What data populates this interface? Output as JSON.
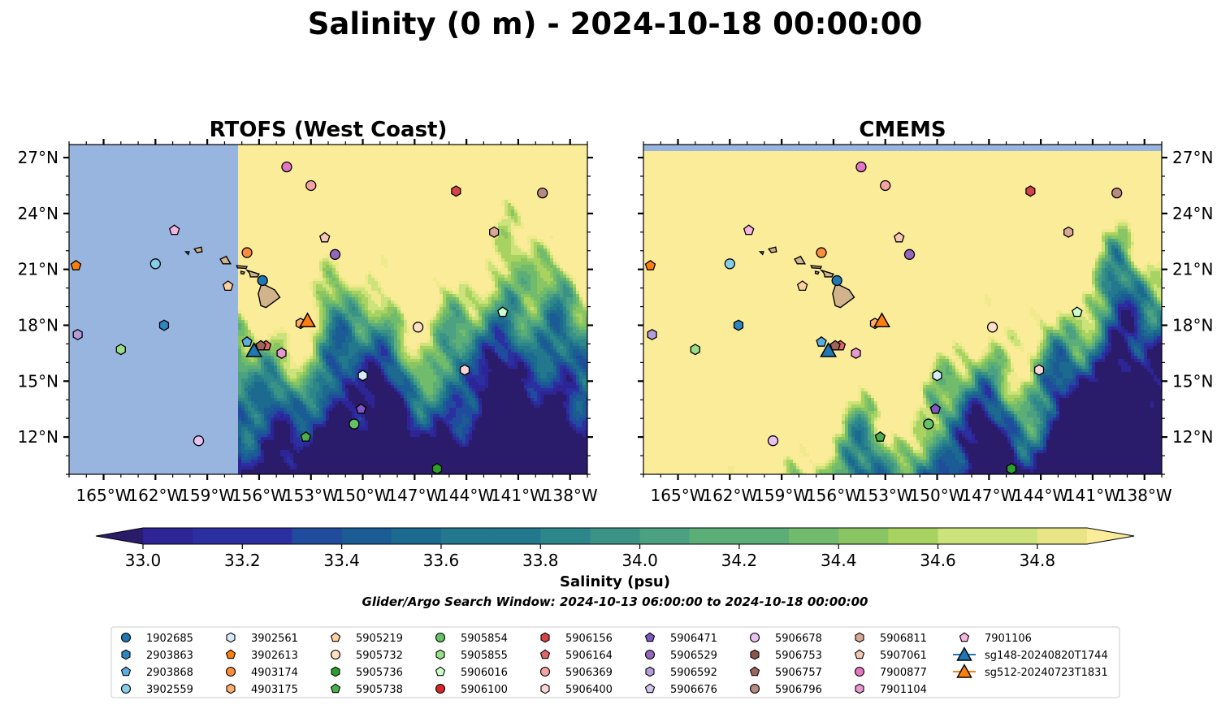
{
  "title": "Salinity (0 m) - 2024-10-18 00:00:00",
  "note": "Glider/Argo Search Window: 2024-10-13 06:00:00 to 2024-10-18 00:00:00",
  "colors": {
    "land": "#d2b48c",
    "nodata": "#98b5df",
    "salty": "#fbec99",
    "scale": [
      "#2a1c6b",
      "#2d2495",
      "#2b2fa0",
      "#1f4c9c",
      "#1b5c95",
      "#1d6a91",
      "#23788d",
      "#2c868a",
      "#3b9386",
      "#4ba181",
      "#5cae78",
      "#70bb6c",
      "#89c663",
      "#a8d360",
      "#cce27a",
      "#f0ea8d"
    ]
  },
  "chart_data": {
    "type": "map",
    "panels": [
      {
        "title": "RTOFS (West Coast)",
        "nodata_west_of_lon": -157.2,
        "mode": "rtofs"
      },
      {
        "title": "CMEMS",
        "nodata_north_of_lat": 27.3,
        "mode": "cmems"
      }
    ],
    "lon_range": [
      -167,
      -137
    ],
    "lat_range": [
      10,
      27.7
    ],
    "x_ticks": [
      -165,
      -162,
      -159,
      -156,
      -153,
      -150,
      -147,
      -144,
      -141,
      -138
    ],
    "x_tick_labels": [
      "165°W",
      "162°W",
      "159°W",
      "156°W",
      "153°W",
      "150°W",
      "147°W",
      "144°W",
      "141°W",
      "138°W"
    ],
    "y_ticks": [
      12,
      15,
      18,
      21,
      24,
      27
    ],
    "y_tick_labels": [
      "12°N",
      "15°N",
      "18°N",
      "21°N",
      "24°N",
      "27°N"
    ],
    "colorbar": {
      "label": "Salinity (psu)",
      "min": 32.9,
      "max": 34.9,
      "ticks": [
        33.0,
        33.2,
        33.4,
        33.6,
        33.8,
        34.0,
        34.2,
        34.4,
        34.6,
        34.8
      ],
      "tick_labels": [
        "33.0",
        "33.2",
        "33.4",
        "33.6",
        "33.8",
        "34.0",
        "34.2",
        "34.4",
        "34.6",
        "34.8"
      ],
      "extend": "both"
    },
    "platforms": [
      {
        "id": "1902685",
        "marker": "circle",
        "color": "#1f77b4",
        "lon": -155.8,
        "lat": 20.4
      },
      {
        "id": "2903863",
        "marker": "hexagon",
        "color": "#2e86c1",
        "lon": -161.5,
        "lat": 18.0
      },
      {
        "id": "2903868",
        "marker": "pentagon",
        "color": "#5dade2",
        "lon": -156.7,
        "lat": 17.1
      },
      {
        "id": "3902559",
        "marker": "circle",
        "color": "#87ceeb",
        "lon": -162.0,
        "lat": 21.3
      },
      {
        "id": "3902561",
        "marker": "hexagon",
        "color": "#d6eaf8",
        "lon": -150.0,
        "lat": 15.3
      },
      {
        "id": "3902613",
        "marker": "pentagon",
        "color": "#ff7f0e",
        "lon": -166.6,
        "lat": 21.2
      },
      {
        "id": "4903174",
        "marker": "circle",
        "color": "#fd8d3c",
        "lon": -156.7,
        "lat": 21.9
      },
      {
        "id": "4903175",
        "marker": "hexagon",
        "color": "#fdae6b",
        "lon": -153.6,
        "lat": 18.1
      },
      {
        "id": "5905219",
        "marker": "pentagon",
        "color": "#fdd0a2",
        "lon": -157.8,
        "lat": 20.1
      },
      {
        "id": "5905732",
        "marker": "circle",
        "color": "#fde0c5",
        "lon": -146.8,
        "lat": 17.9
      },
      {
        "id": "5905736",
        "marker": "hexagon",
        "color": "#2ca02c",
        "lon": -145.7,
        "lat": 10.3
      },
      {
        "id": "5905738",
        "marker": "pentagon",
        "color": "#4daf4a",
        "lon": -153.3,
        "lat": 12.0
      },
      {
        "id": "5905854",
        "marker": "circle",
        "color": "#66c266",
        "lon": -150.5,
        "lat": 12.7
      },
      {
        "id": "5905855",
        "marker": "hexagon",
        "color": "#98df8a",
        "lon": -164.0,
        "lat": 16.7
      },
      {
        "id": "5906016",
        "marker": "pentagon",
        "color": "#ccffcc",
        "lon": -141.9,
        "lat": 18.7
      },
      {
        "id": "5906100",
        "marker": "circle",
        "color": "#d62728",
        "lon": null,
        "lat": null
      },
      {
        "id": "5906156",
        "marker": "hexagon",
        "color": "#d64545",
        "lon": -144.6,
        "lat": 25.2
      },
      {
        "id": "5906164",
        "marker": "pentagon",
        "color": "#e06666",
        "lon": -155.6,
        "lat": 16.9
      },
      {
        "id": "5906369",
        "marker": "circle",
        "color": "#f4a3a3",
        "lon": -153.0,
        "lat": 25.5
      },
      {
        "id": "5906400",
        "marker": "hexagon",
        "color": "#fcd5d5",
        "lon": -144.1,
        "lat": 15.6
      },
      {
        "id": "5906471",
        "marker": "pentagon",
        "color": "#7e57c2",
        "lon": -150.1,
        "lat": 13.5
      },
      {
        "id": "5906529",
        "marker": "circle",
        "color": "#9467bd",
        "lon": -151.6,
        "lat": 21.8
      },
      {
        "id": "5906592",
        "marker": "hexagon",
        "color": "#b39ddb",
        "lon": -166.5,
        "lat": 17.5
      },
      {
        "id": "5906676",
        "marker": "pentagon",
        "color": "#d1c4e9",
        "lon": null,
        "lat": null
      },
      {
        "id": "5906678",
        "marker": "circle",
        "color": "#e8c2f0",
        "lon": -159.5,
        "lat": 11.8
      },
      {
        "id": "5906753",
        "marker": "hexagon",
        "color": "#8c564b",
        "lon": null,
        "lat": null
      },
      {
        "id": "5906757",
        "marker": "pentagon",
        "color": "#a0655a",
        "lon": -155.9,
        "lat": 16.9
      },
      {
        "id": "5906796",
        "marker": "circle",
        "color": "#b88a80",
        "lon": -139.6,
        "lat": 25.1
      },
      {
        "id": "5906811",
        "marker": "hexagon",
        "color": "#d9a896",
        "lon": -142.4,
        "lat": 23.0
      },
      {
        "id": "5907061",
        "marker": "pentagon",
        "color": "#f5c8b5",
        "lon": -152.2,
        "lat": 22.7
      },
      {
        "id": "7900877",
        "marker": "circle",
        "color": "#e377c2",
        "lon": -154.4,
        "lat": 26.5
      },
      {
        "id": "7901104",
        "marker": "hexagon",
        "color": "#e899d0",
        "lon": -154.7,
        "lat": 16.5
      },
      {
        "id": "7901106",
        "marker": "pentagon",
        "color": "#f7b6e0",
        "lon": -160.9,
        "lat": 23.1
      }
    ],
    "gliders": [
      {
        "id": "sg148-20240820T1744",
        "marker": "triangle",
        "color": "#1f77b4",
        "lon": -156.3,
        "lat": 16.6
      },
      {
        "id": "sg512-20240723T1831",
        "marker": "triangle",
        "color": "#ff7f0e",
        "lon": -153.2,
        "lat": 18.2
      }
    ]
  }
}
